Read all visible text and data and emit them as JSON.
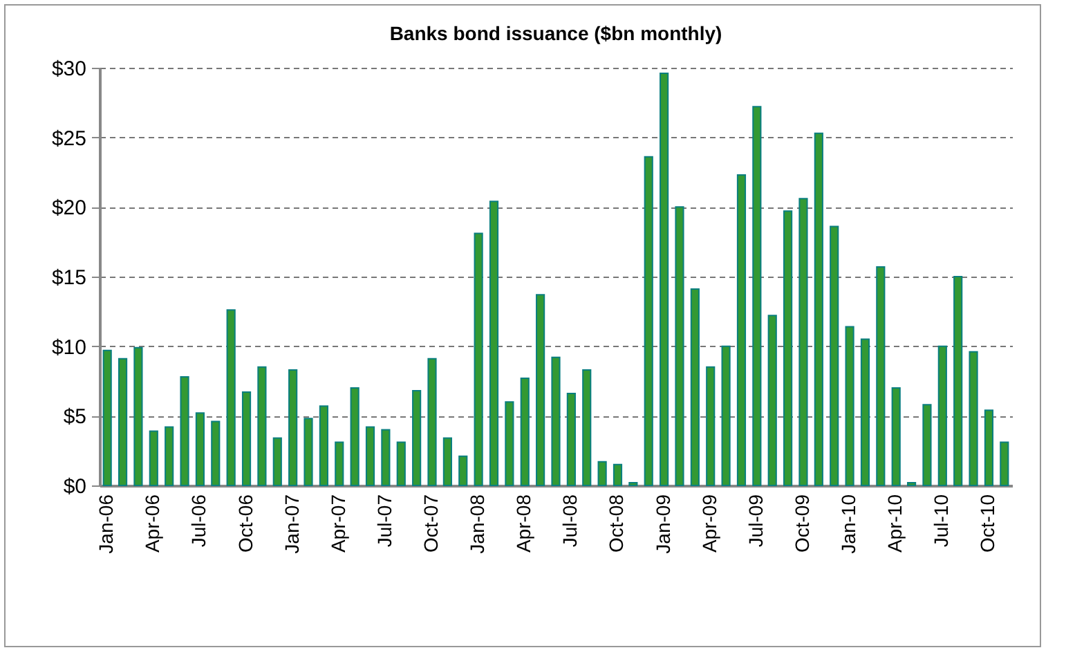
{
  "chart_data": {
    "type": "bar",
    "title": "Banks bond issuance ($bn monthly)",
    "categories": [
      "Jan-06",
      null,
      null,
      "Apr-06",
      null,
      null,
      "Jul-06",
      null,
      null,
      "Oct-06",
      null,
      null,
      "Jan-07",
      null,
      null,
      "Apr-07",
      null,
      null,
      "Jul-07",
      null,
      null,
      "Oct-07",
      null,
      null,
      "Jan-08",
      null,
      null,
      "Apr-08",
      null,
      null,
      "Jul-08",
      null,
      null,
      "Oct-08",
      null,
      null,
      "Jan-09",
      null,
      null,
      "Apr-09",
      null,
      null,
      "Jul-09",
      null,
      null,
      "Oct-09",
      null,
      null,
      "Jan-10",
      null,
      null,
      "Apr-10",
      null,
      null,
      "Jul-10",
      null,
      null,
      "Oct-10",
      null
    ],
    "values": [
      9.7,
      9.1,
      9.9,
      3.9,
      4.2,
      7.8,
      5.2,
      4.6,
      12.6,
      6.7,
      8.5,
      3.4,
      8.3,
      4.8,
      5.7,
      3.1,
      7.0,
      4.2,
      4.0,
      3.1,
      6.8,
      9.1,
      3.4,
      2.1,
      18.1,
      20.4,
      6.0,
      7.7,
      13.7,
      9.2,
      6.6,
      8.3,
      1.7,
      1.5,
      0.2,
      23.6,
      29.6,
      20.0,
      14.1,
      8.5,
      10.0,
      22.3,
      27.2,
      12.2,
      19.7,
      20.6,
      25.3,
      18.6,
      11.4,
      10.5,
      15.7,
      7.0,
      0.2,
      5.8,
      10.0,
      15.0,
      9.6,
      5.4,
      3.1
    ],
    "color": "#339933",
    "ylim": [
      0,
      30
    ],
    "yticks": [
      {
        "value": 0,
        "label": "$0"
      },
      {
        "value": 5,
        "label": "$5"
      },
      {
        "value": 10,
        "label": "$10"
      },
      {
        "value": 15,
        "label": "$15"
      },
      {
        "value": 20,
        "label": "$20"
      },
      {
        "value": 25,
        "label": "$25"
      },
      {
        "value": 30,
        "label": "$30"
      }
    ],
    "grid": "y",
    "line_style": "dashed"
  }
}
